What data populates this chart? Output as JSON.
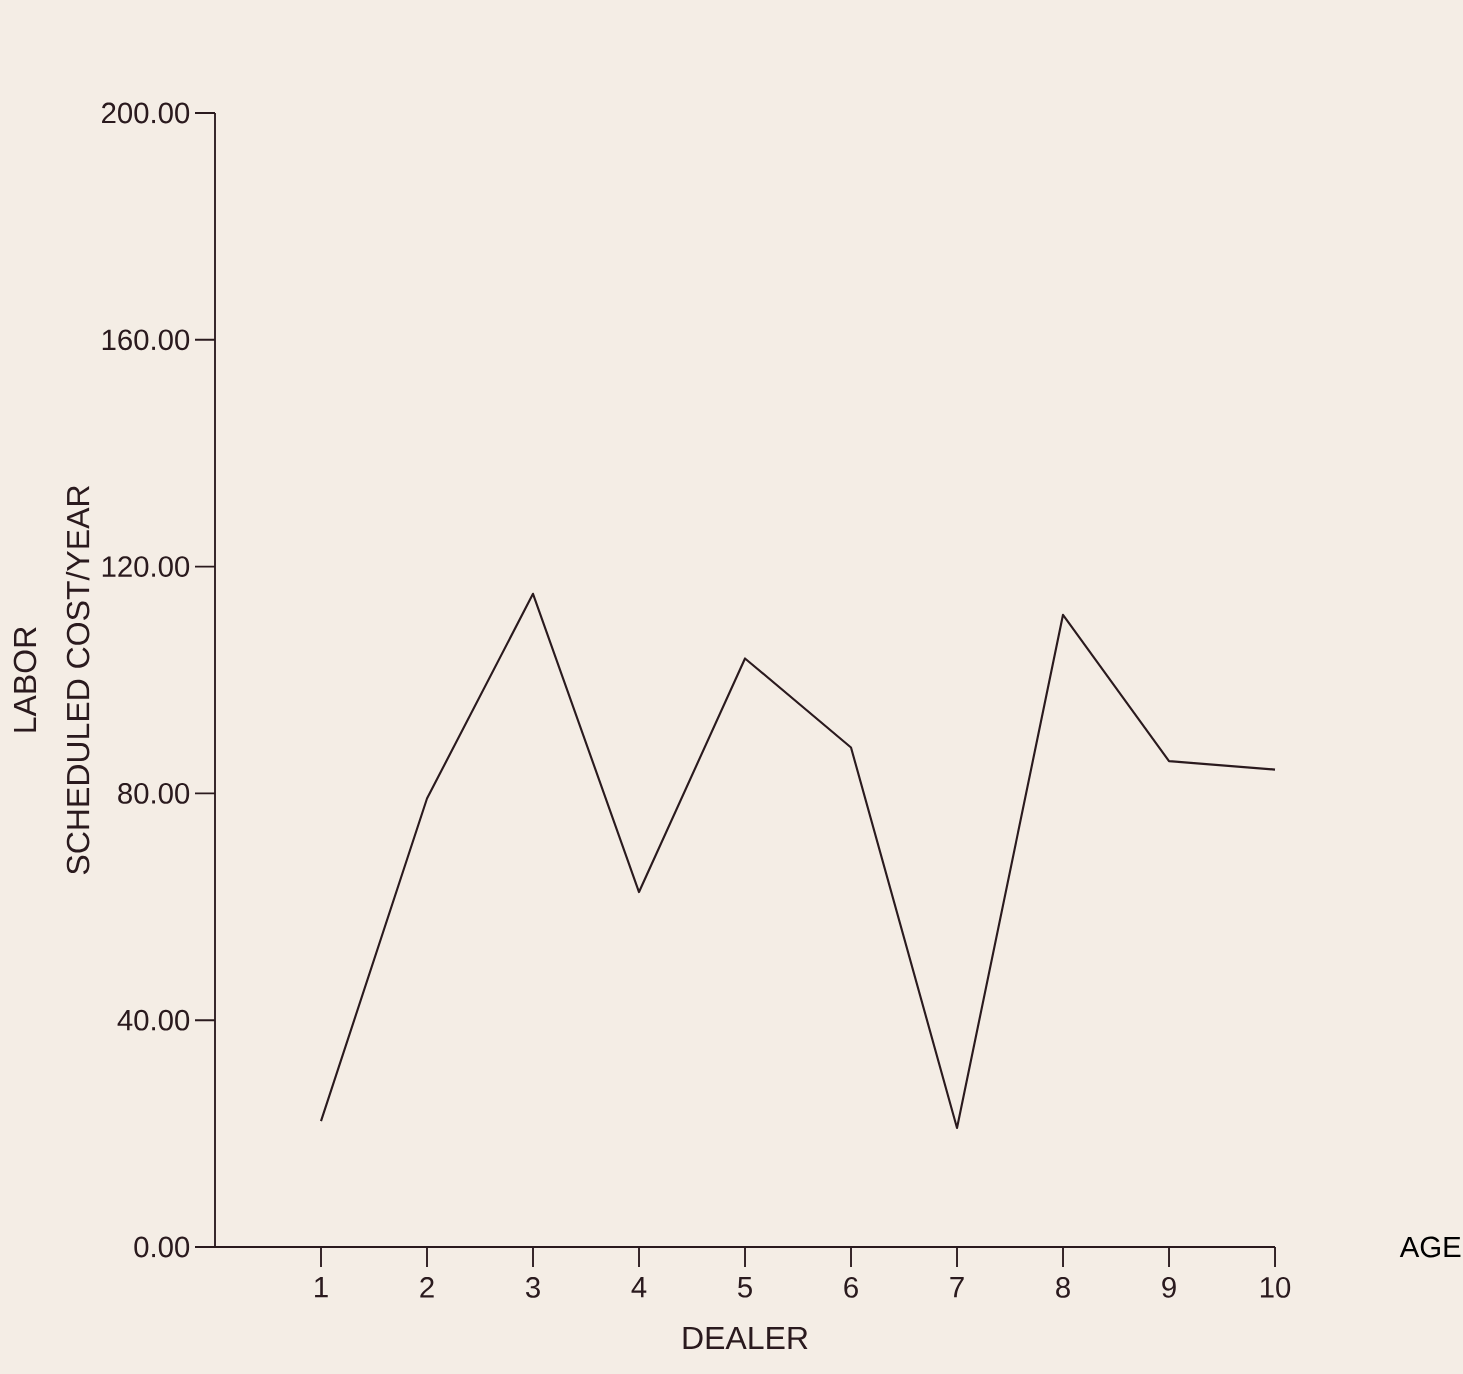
{
  "chart_data": {
    "type": "line",
    "title": "LABOR",
    "ylabel": "SCHEDULED COST/YEAR",
    "xlabel": "DEALER",
    "annotations": [
      "AGE"
    ],
    "x": [
      1,
      2,
      3,
      4,
      5,
      6,
      7,
      8,
      9,
      10
    ],
    "series": [
      {
        "color": "#2a1a1e",
        "values": [
          22.2,
          79.1,
          115.2,
          62.6,
          103.8,
          88.1,
          21.0,
          111.5,
          85.7,
          84.2
        ]
      }
    ],
    "xlim": [
      0,
      10
    ],
    "xticks": [
      1,
      2,
      3,
      4,
      5,
      6,
      7,
      8,
      9,
      10
    ],
    "ylim": [
      0,
      200
    ],
    "yticks": [
      {
        "value": 0,
        "label": "0.00"
      },
      {
        "value": 40,
        "label": "40.00"
      },
      {
        "value": 80,
        "label": "80.00"
      },
      {
        "value": 120,
        "label": "120.00"
      },
      {
        "value": 160,
        "label": "160.00"
      },
      {
        "value": 200,
        "label": "200.00"
      }
    ],
    "grid": false,
    "marker": "none",
    "line_style": "solid"
  }
}
